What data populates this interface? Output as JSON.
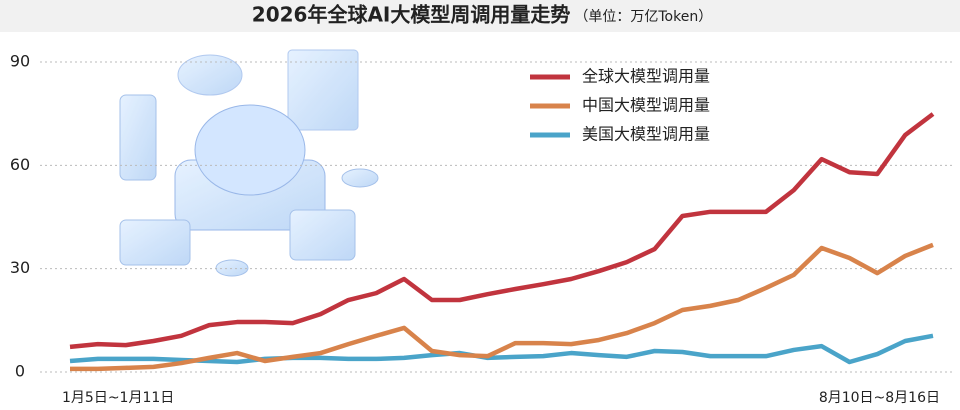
{
  "chart_data": {
    "type": "line",
    "title": "2026年全球AI大模型周调用量走势",
    "subtitle": "（单位：万亿Token）",
    "categories": [
      "1月5日~1月11日",
      null,
      null,
      null,
      null,
      null,
      null,
      null,
      null,
      null,
      null,
      null,
      null,
      null,
      null,
      null,
      null,
      null,
      null,
      null,
      null,
      null,
      null,
      null,
      null,
      null,
      null,
      null,
      null,
      null,
      null,
      "8月10日~8月16日"
    ],
    "series": [
      {
        "name": "全球大模型调用量",
        "color": "#c1343e",
        "values": [
          7.3,
          8.1,
          7.8,
          9,
          10.5,
          13.6,
          14.5,
          14.5,
          14.2,
          16.8,
          20.9,
          22.9,
          27,
          20.9,
          20.9,
          22.6,
          24.1,
          25.5,
          27,
          29.3,
          31.9,
          35.7,
          45.3,
          46.5,
          46.5,
          46.5,
          52.8,
          61.8,
          58,
          57.5,
          68.8,
          74.9
        ]
      },
      {
        "name": "中国大模型调用量",
        "color": "#d8834b",
        "values": [
          0.9,
          0.9,
          1.2,
          1.5,
          2.6,
          4.1,
          5.5,
          3.2,
          4.4,
          5.5,
          8.1,
          10.5,
          12.8,
          6.1,
          4.9,
          4.6,
          8.4,
          8.4,
          8.1,
          9.3,
          11.3,
          14.2,
          18,
          19.2,
          20.9,
          24.4,
          28.2,
          36,
          33.1,
          28.7,
          33.7,
          36.9
        ]
      },
      {
        "name": "美国大模型调用量",
        "color": "#4aa4c9",
        "values": [
          3.2,
          3.8,
          3.8,
          3.8,
          3.5,
          3.2,
          2.9,
          3.8,
          4.1,
          4.1,
          3.8,
          3.8,
          4.1,
          4.9,
          5.5,
          4.1,
          4.4,
          4.6,
          5.5,
          4.9,
          4.4,
          6.1,
          5.8,
          4.6,
          4.6,
          4.6,
          6.4,
          7.5,
          2.9,
          5.2,
          9,
          10.5
        ]
      }
    ],
    "ylim": [
      0,
      90
    ],
    "yticks": [
      0,
      30,
      60,
      90
    ],
    "grid": true,
    "legend": "top-right"
  }
}
